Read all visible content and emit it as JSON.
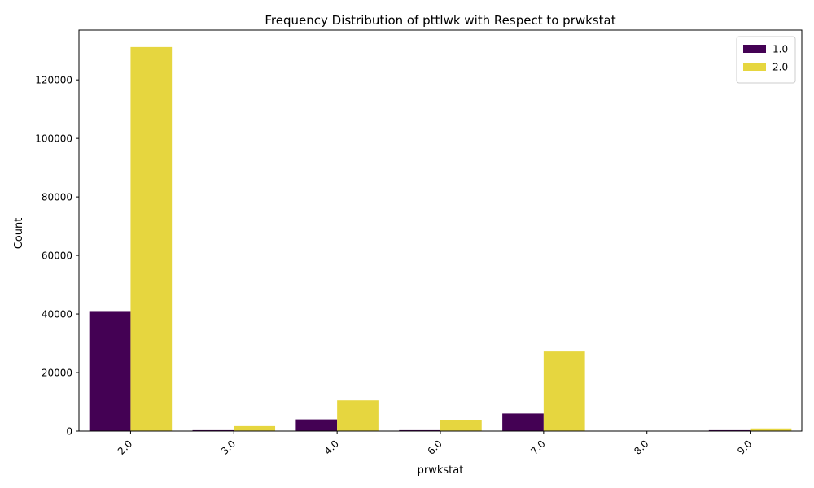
{
  "chart_data": {
    "type": "bar",
    "title": "Frequency Distribution of pttlwk with Respect to prwkstat",
    "xlabel": "prwkstat",
    "ylabel": "Count",
    "categories": [
      "2.0",
      "3.0",
      "4.0",
      "6.0",
      "7.0",
      "8.0",
      "9.0"
    ],
    "series": [
      {
        "name": "1.0",
        "color": "#440154",
        "values": [
          41000,
          300,
          4000,
          300,
          6000,
          0,
          300
        ]
      },
      {
        "name": "2.0",
        "color": "#e6d63f",
        "values": [
          131200,
          1700,
          10500,
          3700,
          27200,
          0,
          900
        ]
      }
    ],
    "ylim": [
      0,
      137000
    ],
    "yticks": [
      0,
      20000,
      40000,
      60000,
      80000,
      100000,
      120000
    ],
    "ytick_labels": [
      "0",
      "20000",
      "40000",
      "60000",
      "80000",
      "100000",
      "120000"
    ],
    "legend_position": "top-right",
    "grid": false
  }
}
